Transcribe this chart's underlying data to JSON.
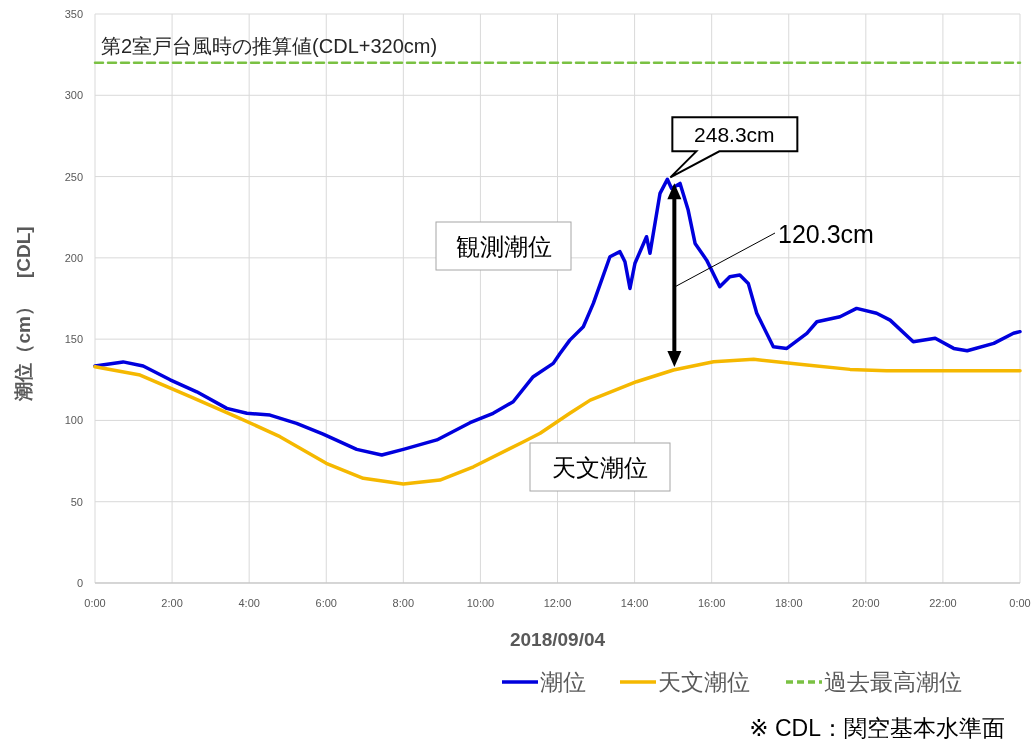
{
  "chart_data": {
    "type": "line",
    "xlabel": "2018/09/04",
    "ylabel": "潮位（cm）　[CDL]",
    "xlim": [
      0,
      24
    ],
    "ylim": [
      0,
      350
    ],
    "xticks": [
      {
        "value": 0,
        "label": "0:00"
      },
      {
        "value": 2,
        "label": "2:00"
      },
      {
        "value": 4,
        "label": "4:00"
      },
      {
        "value": 6,
        "label": "6:00"
      },
      {
        "value": 8,
        "label": "8:00"
      },
      {
        "value": 10,
        "label": "10:00"
      },
      {
        "value": 12,
        "label": "12:00"
      },
      {
        "value": 14,
        "label": "14:00"
      },
      {
        "value": 16,
        "label": "16:00"
      },
      {
        "value": 18,
        "label": "18:00"
      },
      {
        "value": 20,
        "label": "20:00"
      },
      {
        "value": 22,
        "label": "22:00"
      },
      {
        "value": 24,
        "label": "0:00"
      }
    ],
    "yticks": [
      0,
      50,
      100,
      150,
      200,
      250,
      300,
      350
    ],
    "grid": true,
    "legend": "bottom right",
    "marker": "none",
    "series": [
      {
        "name": "潮位",
        "color": "#0000dd",
        "x": [
          0,
          0.73,
          1.25,
          1.95,
          2.64,
          3.42,
          3.94,
          4.54,
          5.23,
          5.92,
          6.79,
          7.44,
          8.0,
          8.87,
          9.73,
          10.33,
          10.85,
          11.37,
          11.89,
          12.06,
          12.32,
          12.67,
          12.93,
          13.36,
          13.62,
          13.75,
          13.88,
          14.01,
          14.31,
          14.4,
          14.66,
          14.85,
          14.96,
          15.18,
          15.39,
          15.57,
          15.87,
          16.21,
          16.47,
          16.73,
          16.95,
          17.17,
          17.6,
          17.95,
          18.47,
          18.73,
          19.33,
          19.76,
          20.28,
          20.63,
          21.23,
          21.8,
          22.28,
          22.63,
          23.32,
          23.83,
          24
        ],
        "values": [
          133.5,
          136,
          133.5,
          125,
          117.6,
          107.4,
          104.4,
          103.3,
          98.2,
          91.6,
          82.2,
          78.7,
          82.2,
          88,
          98.6,
          104.4,
          111.5,
          126.9,
          135.1,
          141,
          149.4,
          157.6,
          172,
          200.7,
          203.8,
          197.6,
          181.2,
          196.7,
          213,
          202.8,
          239.7,
          248.3,
          242.7,
          245.8,
          229.4,
          208.9,
          198.6,
          182.2,
          188.4,
          189.4,
          184.3,
          165.9,
          145.3,
          144.3,
          153.6,
          160.7,
          163.8,
          168.9,
          165.9,
          161.7,
          148.4,
          150.5,
          144.3,
          142.9,
          147.4,
          153.6,
          154.6
        ]
      },
      {
        "name": "天文潮位",
        "color": "#f5b800",
        "x": [
          0,
          1.17,
          2.47,
          3.76,
          4.8,
          6.0,
          6.96,
          8.0,
          8.95,
          9.82,
          11.12,
          11.55,
          12.32,
          12.85,
          14.05,
          15.01,
          16.05,
          17.09,
          18.47,
          19.59,
          20.54,
          24
        ],
        "values": [
          133,
          127.9,
          114.6,
          101.3,
          90,
          73.6,
          64.4,
          60.9,
          63.3,
          71.5,
          86.9,
          92.1,
          104.4,
          112.5,
          123.8,
          131,
          136.1,
          137.6,
          134.1,
          131.4,
          130.6,
          130.6
        ]
      },
      {
        "name": "過去最高潮位",
        "color": "#7ac143",
        "line_style": "dashed",
        "x": [
          0,
          24
        ],
        "values": [
          320,
          320
        ]
      }
    ],
    "annotations": [
      {
        "text": "第2室戸台風時の推算値(CDL+320cm)",
        "x": 0,
        "y": 320
      },
      "観測潮位",
      "天文潮位",
      {
        "text": "248.3cm",
        "x": 14.85,
        "y": 248.3
      },
      "120.3cm",
      "※  CDL：関空基本水準面"
    ]
  }
}
